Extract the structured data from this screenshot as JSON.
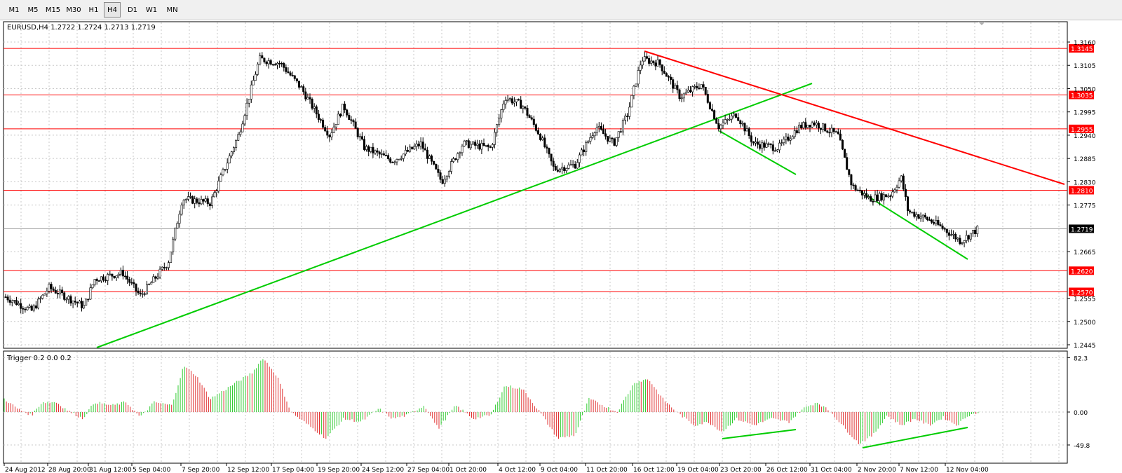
{
  "toolbar": {
    "timeframes": [
      {
        "label": "M1",
        "active": false
      },
      {
        "label": "M5",
        "active": false
      },
      {
        "label": "M15",
        "active": false
      },
      {
        "label": "M30",
        "active": false
      },
      {
        "label": "H1",
        "active": false
      },
      {
        "label": "H4",
        "active": true
      },
      {
        "label": "D1",
        "active": false
      },
      {
        "label": "W1",
        "active": false
      },
      {
        "label": "MN",
        "active": false
      }
    ]
  },
  "main_chart": {
    "header": "EURUSD,H4  1.2722 1.2724 1.2713 1.2719",
    "price_labels": [
      "1.3160",
      "1.3105",
      "1.3050",
      "1.2995",
      "1.2940",
      "1.2885",
      "1.2830",
      "1.2775",
      "1.2665",
      "1.2555",
      "1.2500",
      "1.2445"
    ],
    "level_lines": [
      {
        "price": "1.3145",
        "color": "#ff0000"
      },
      {
        "price": "1.3035",
        "color": "#ff0000"
      },
      {
        "price": "1.2955",
        "color": "#ff0000"
      },
      {
        "price": "1.2810",
        "color": "#ff0000"
      },
      {
        "price": "1.2620",
        "color": "#ff0000"
      },
      {
        "price": "1.2570",
        "color": "#ff0000"
      }
    ],
    "current_price": "1.2719",
    "up_candle_color": "#ffffff",
    "down_candle_color": "#000000"
  },
  "indicator": {
    "header": "Trigger 0.2 0.0 0.2",
    "scale_labels": [
      "82.3",
      "0.00",
      "-49.8"
    ],
    "up_color": "#33cc33",
    "down_color": "#e03030"
  },
  "time_axis": [
    "24 Aug 2012",
    "28 Aug 20:00",
    "31 Aug 12:00",
    "5 Sep 04:00",
    "7 Sep 20:00",
    "12 Sep 12:00",
    "17 Sep 04:00",
    "19 Sep 20:00",
    "24 Sep 12:00",
    "27 Sep 04:00",
    "1 Oct 20:00",
    "4 Oct 12:00",
    "9 Oct 04:00",
    "11 Oct 20:00",
    "16 Oct 12:00",
    "19 Oct 04:00",
    "23 Oct 20:00",
    "26 Oct 12:00",
    "31 Oct 04:00",
    "2 Nov 20:00",
    "7 Nov 12:00",
    "12 Nov 04:00"
  ],
  "trendline_colors": {
    "green": "#00cc00",
    "red": "#ff0000"
  }
}
